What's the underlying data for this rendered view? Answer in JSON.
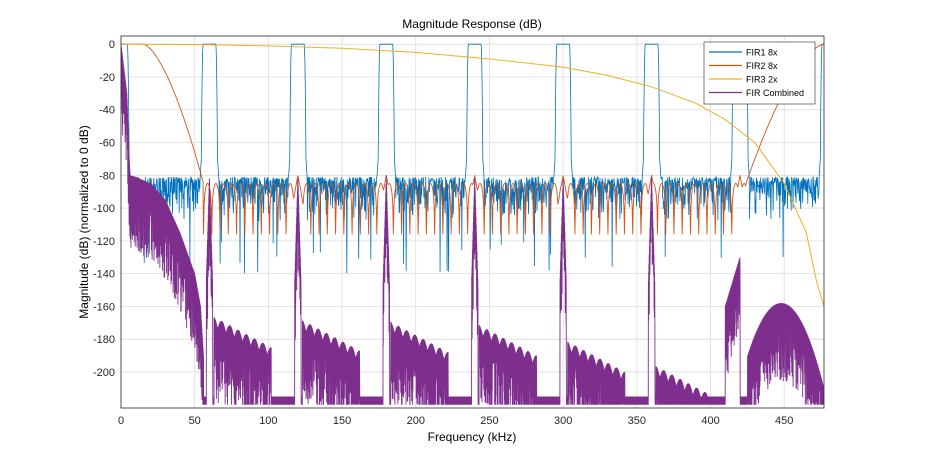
{
  "chart_data": {
    "type": "line",
    "title": "Magnitude Response (dB)",
    "xlabel": "Frequency (kHz)",
    "ylabel": "Magnitude (dB) (normalized to 0 dB)",
    "xlim": [
      0,
      477
    ],
    "ylim": [
      -222,
      5
    ],
    "xticks": [
      0,
      50,
      100,
      150,
      200,
      250,
      300,
      350,
      400,
      450
    ],
    "yticks": [
      0,
      -20,
      -40,
      -60,
      -80,
      -100,
      -120,
      -140,
      -160,
      -180,
      -200
    ],
    "grid": true,
    "legend_position": "top-right",
    "series": [
      {
        "name": "FIR1 8x",
        "color": "#0072BD",
        "passband_centers_khz": [
          0,
          60,
          120,
          180,
          240,
          300,
          360,
          420,
          480
        ],
        "passband_halfwidth_khz": 5.5,
        "passband_level_db": 0,
        "stopband_floor_db": -81,
        "stopband_ripple_min_db": -110,
        "deep_null_db": -140
      },
      {
        "name": "FIR2 8x",
        "color": "#D95319",
        "passband_centers_khz": [
          0,
          480
        ],
        "passband_edge_khz": 15,
        "transition_end_khz": 56,
        "stopband_lobe_top_db": -85,
        "stopband_null_db": -130,
        "image_centers_khz": [
          120,
          180,
          240,
          300,
          360,
          420
        ]
      },
      {
        "name": "FIR3 2x",
        "color": "#EDB120",
        "points": [
          [
            0,
            0
          ],
          [
            50,
            -0.2
          ],
          [
            100,
            -1
          ],
          [
            150,
            -2.5
          ],
          [
            200,
            -5
          ],
          [
            250,
            -9
          ],
          [
            300,
            -14
          ],
          [
            330,
            -19
          ],
          [
            360,
            -26
          ],
          [
            390,
            -36
          ],
          [
            410,
            -46
          ],
          [
            430,
            -60
          ],
          [
            450,
            -85
          ],
          [
            465,
            -115
          ],
          [
            472,
            -145
          ],
          [
            477,
            -160
          ]
        ]
      },
      {
        "name": "FIR Combined",
        "color": "#7E2F8E",
        "envelope": [
          [
            0,
            0
          ],
          [
            4,
            -30
          ],
          [
            6,
            -80
          ],
          [
            10,
            -81
          ],
          [
            20,
            -85
          ],
          [
            30,
            -95
          ],
          [
            40,
            -115
          ],
          [
            50,
            -140
          ],
          [
            54,
            -160
          ],
          [
            56,
            -190
          ]
        ],
        "cluster_centers_khz": [
          60,
          120,
          180,
          240,
          300,
          360
        ],
        "cluster_top_db": [
          -165,
          -167,
          -168,
          -170,
          -180,
          -195
        ],
        "hump": {
          "center_khz": 448,
          "peak_db": -158
        },
        "floor_db": -220
      }
    ]
  }
}
